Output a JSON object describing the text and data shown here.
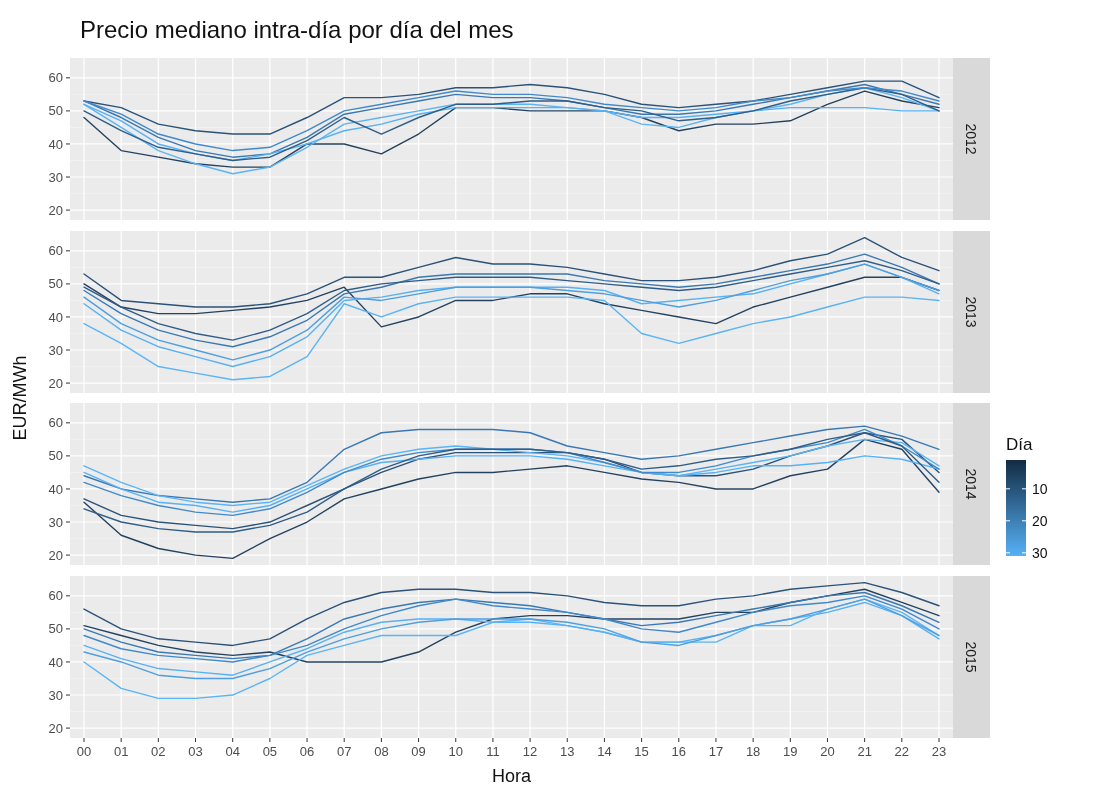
{
  "chart_data": [
    {
      "type": "line",
      "title": "Precio mediano intra-día por día del mes",
      "annotations": [
        "2012"
      ],
      "categories": [
        "00",
        "01",
        "02",
        "03",
        "04",
        "05",
        "06",
        "07",
        "08",
        "09",
        "10",
        "11",
        "12",
        "13",
        "14",
        "15",
        "16",
        "17",
        "18",
        "19",
        "20",
        "21",
        "22",
        "23"
      ],
      "ylim": [
        17,
        66
      ],
      "yticks": [
        20,
        30,
        40,
        50,
        60
      ],
      "grid": true,
      "tick_labels": "y",
      "series": [
        {
          "color": "#24425f",
          "values": [
            48,
            38,
            36,
            34,
            33,
            33,
            40,
            40,
            37,
            43,
            51,
            51,
            50,
            50,
            50,
            48,
            44,
            46,
            46,
            47,
            52,
            56,
            53,
            51
          ]
        },
        {
          "color": "#2b5279",
          "values": [
            53,
            51,
            46,
            44,
            43,
            43,
            48,
            54,
            54,
            55,
            57,
            57,
            58,
            57,
            55,
            52,
            51,
            52,
            53,
            55,
            57,
            59,
            59,
            54
          ]
        },
        {
          "color": "#3a78b3",
          "values": [
            53,
            48,
            42,
            38,
            36,
            37,
            42,
            49,
            51,
            53,
            55,
            54,
            54,
            53,
            51,
            49,
            49,
            50,
            52,
            54,
            56,
            58,
            55,
            52
          ]
        },
        {
          "color": "#5ab4f5",
          "values": [
            52,
            45,
            38,
            34,
            31,
            33,
            39,
            46,
            48,
            50,
            52,
            52,
            52,
            51,
            50,
            46,
            45,
            48,
            50,
            52,
            55,
            57,
            54,
            50
          ]
        },
        {
          "color": "#56b1f7",
          "values": [
            52,
            47,
            40,
            37,
            35,
            37,
            40,
            44,
            46,
            49,
            51,
            51,
            51,
            51,
            50,
            48,
            48,
            49,
            50,
            51,
            51,
            51,
            50,
            50
          ]
        },
        {
          "color": "#2f5d88",
          "values": [
            50,
            44,
            39,
            37,
            35,
            36,
            41,
            48,
            43,
            48,
            52,
            52,
            53,
            53,
            51,
            50,
            47,
            48,
            50,
            53,
            55,
            57,
            55,
            50
          ]
        },
        {
          "color": "#4189cb",
          "values": [
            53,
            49,
            43,
            40,
            38,
            39,
            44,
            50,
            52,
            54,
            56,
            55,
            55,
            54,
            52,
            51,
            50,
            51,
            53,
            54,
            56,
            57,
            56,
            53
          ]
        }
      ]
    },
    {
      "type": "line",
      "annotations": [
        "2013"
      ],
      "ylabel": "EUR/MWh",
      "clabel": "Día",
      "clim": [
        1,
        31
      ],
      "cticks": [
        10,
        20,
        30
      ],
      "categories": [
        "00",
        "01",
        "02",
        "03",
        "04",
        "05",
        "06",
        "07",
        "08",
        "09",
        "10",
        "11",
        "12",
        "13",
        "14",
        "15",
        "16",
        "17",
        "18",
        "19",
        "20",
        "21",
        "22",
        "23"
      ],
      "ylim": [
        17,
        66
      ],
      "yticks": [
        20,
        30,
        40,
        50,
        60
      ],
      "grid": true,
      "tick_labels": "y",
      "series": [
        {
          "color": "#24425f",
          "values": [
            50,
            43,
            41,
            41,
            42,
            43,
            45,
            49,
            37,
            40,
            45,
            45,
            47,
            47,
            44,
            42,
            40,
            38,
            43,
            46,
            49,
            52,
            52,
            48
          ]
        },
        {
          "color": "#2b5279",
          "values": [
            53,
            45,
            44,
            43,
            43,
            44,
            47,
            52,
            52,
            55,
            58,
            56,
            56,
            55,
            53,
            51,
            51,
            52,
            54,
            57,
            59,
            64,
            58,
            54
          ]
        },
        {
          "color": "#3a78b3",
          "values": [
            48,
            41,
            36,
            33,
            31,
            34,
            39,
            47,
            49,
            52,
            53,
            53,
            53,
            53,
            51,
            50,
            49,
            50,
            52,
            54,
            56,
            59,
            55,
            50
          ]
        },
        {
          "color": "#5ab4f5",
          "values": [
            38,
            32,
            25,
            23,
            21,
            22,
            28,
            44,
            40,
            44,
            46,
            46,
            46,
            46,
            45,
            35,
            32,
            35,
            38,
            40,
            43,
            46,
            46,
            45
          ]
        },
        {
          "color": "#56b1f7",
          "values": [
            44,
            36,
            31,
            28,
            25,
            28,
            34,
            45,
            46,
            48,
            49,
            49,
            49,
            49,
            48,
            44,
            45,
            46,
            47,
            50,
            53,
            56,
            52,
            47
          ]
        },
        {
          "color": "#2f5d88",
          "values": [
            49,
            43,
            38,
            35,
            33,
            36,
            41,
            48,
            50,
            51,
            52,
            52,
            52,
            51,
            50,
            49,
            48,
            49,
            51,
            53,
            55,
            57,
            54,
            50
          ]
        },
        {
          "color": "#4e9fe0",
          "values": [
            46,
            38,
            33,
            30,
            27,
            30,
            36,
            46,
            45,
            47,
            49,
            49,
            49,
            48,
            47,
            45,
            43,
            45,
            48,
            51,
            53,
            56,
            52,
            48
          ]
        }
      ]
    },
    {
      "type": "line",
      "annotations": [
        "2014"
      ],
      "categories": [
        "00",
        "01",
        "02",
        "03",
        "04",
        "05",
        "06",
        "07",
        "08",
        "09",
        "10",
        "11",
        "12",
        "13",
        "14",
        "15",
        "16",
        "17",
        "18",
        "19",
        "20",
        "21",
        "22",
        "23"
      ],
      "ylim": [
        17,
        66
      ],
      "yticks": [
        20,
        30,
        40,
        50,
        60
      ],
      "grid": true,
      "tick_labels": "y",
      "series": [
        {
          "color": "#24425f",
          "values": [
            36,
            26,
            22,
            20,
            19,
            25,
            30,
            37,
            40,
            43,
            45,
            45,
            46,
            47,
            45,
            43,
            42,
            40,
            40,
            44,
            46,
            55,
            52,
            39
          ]
        },
        {
          "color": "#2b5279",
          "values": [
            37,
            32,
            30,
            29,
            28,
            30,
            35,
            40,
            45,
            49,
            51,
            51,
            51,
            51,
            49,
            45,
            44,
            44,
            46,
            50,
            53,
            57,
            55,
            45
          ]
        },
        {
          "color": "#3a78b3",
          "values": [
            44,
            40,
            38,
            37,
            36,
            37,
            42,
            52,
            57,
            58,
            58,
            58,
            57,
            53,
            51,
            49,
            50,
            52,
            54,
            56,
            58,
            59,
            56,
            52
          ]
        },
        {
          "color": "#5ab4f5",
          "values": [
            47,
            42,
            38,
            36,
            35,
            36,
            41,
            46,
            50,
            52,
            53,
            52,
            51,
            50,
            48,
            45,
            44,
            46,
            48,
            50,
            53,
            55,
            54,
            47
          ]
        },
        {
          "color": "#56b1f7",
          "values": [
            45,
            40,
            36,
            35,
            33,
            35,
            40,
            45,
            48,
            49,
            50,
            50,
            50,
            49,
            47,
            45,
            44,
            45,
            47,
            47,
            48,
            50,
            49,
            46
          ]
        },
        {
          "color": "#4189cb",
          "values": [
            42,
            38,
            35,
            33,
            32,
            34,
            39,
            45,
            49,
            51,
            52,
            52,
            52,
            51,
            48,
            45,
            45,
            47,
            50,
            52,
            54,
            58,
            53,
            46
          ]
        },
        {
          "color": "#2f5d88",
          "values": [
            34,
            30,
            28,
            27,
            27,
            29,
            33,
            40,
            46,
            50,
            52,
            52,
            52,
            51,
            49,
            46,
            47,
            49,
            50,
            52,
            55,
            57,
            53,
            42
          ]
        }
      ]
    },
    {
      "type": "line",
      "annotations": [
        "2015"
      ],
      "xlabel": "Hora",
      "categories": [
        "00",
        "01",
        "02",
        "03",
        "04",
        "05",
        "06",
        "07",
        "08",
        "09",
        "10",
        "11",
        "12",
        "13",
        "14",
        "15",
        "16",
        "17",
        "18",
        "19",
        "20",
        "21",
        "22",
        "23"
      ],
      "ylim": [
        17,
        66
      ],
      "yticks": [
        20,
        30,
        40,
        50,
        60
      ],
      "grid": true,
      "series": [
        {
          "color": "#24425f",
          "values": [
            51,
            48,
            45,
            43,
            42,
            43,
            40,
            40,
            40,
            43,
            49,
            53,
            54,
            54,
            53,
            53,
            53,
            55,
            55,
            58,
            60,
            62,
            58,
            54
          ]
        },
        {
          "color": "#2b5279",
          "values": [
            56,
            50,
            47,
            46,
            45,
            47,
            53,
            58,
            61,
            62,
            62,
            61,
            61,
            60,
            58,
            57,
            57,
            59,
            60,
            62,
            63,
            64,
            61,
            57
          ]
        },
        {
          "color": "#3a78b3",
          "values": [
            50,
            46,
            43,
            42,
            41,
            42,
            47,
            53,
            56,
            58,
            59,
            58,
            57,
            55,
            53,
            51,
            52,
            54,
            56,
            58,
            60,
            61,
            57,
            52
          ]
        },
        {
          "color": "#5ab4f5",
          "values": [
            40,
            32,
            29,
            29,
            30,
            35,
            42,
            45,
            48,
            48,
            48,
            52,
            53,
            51,
            49,
            46,
            46,
            46,
            51,
            51,
            56,
            59,
            55,
            48
          ]
        },
        {
          "color": "#56b1f7",
          "values": [
            45,
            41,
            38,
            37,
            36,
            40,
            44,
            49,
            52,
            53,
            53,
            52,
            52,
            51,
            49,
            46,
            46,
            48,
            51,
            53,
            55,
            58,
            54,
            47
          ]
        },
        {
          "color": "#4189cb",
          "values": [
            48,
            44,
            42,
            41,
            40,
            42,
            45,
            50,
            54,
            57,
            59,
            57,
            56,
            55,
            53,
            50,
            49,
            52,
            55,
            57,
            58,
            60,
            56,
            50
          ]
        },
        {
          "color": "#4e9fe0",
          "values": [
            43,
            40,
            36,
            35,
            35,
            38,
            43,
            47,
            50,
            52,
            53,
            53,
            53,
            52,
            50,
            46,
            45,
            48,
            51,
            53,
            56,
            59,
            54,
            48
          ]
        }
      ]
    }
  ]
}
